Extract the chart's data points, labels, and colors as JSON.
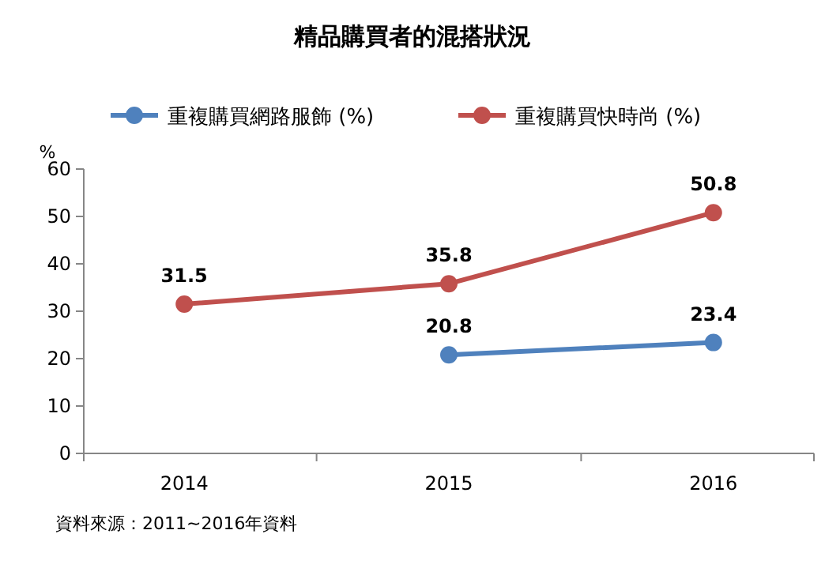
{
  "chart_data": {
    "type": "line",
    "title": "精品購買者的混搭狀況",
    "ylabel": "%",
    "categories": [
      "2014",
      "2015",
      "2016"
    ],
    "series": [
      {
        "name": "重複購買網路服飾 (%)",
        "color": "#4f81bd",
        "values": [
          null,
          20.8,
          23.4
        ]
      },
      {
        "name": "重複購買快時尚 (%)",
        "color": "#c0504d",
        "values": [
          31.5,
          35.8,
          50.8
        ]
      }
    ],
    "ylim": [
      0,
      60
    ],
    "yticks": [
      0,
      10,
      20,
      30,
      40,
      50,
      60
    ],
    "grid": false,
    "legend": "top",
    "marker": "circle",
    "line_style": "solid",
    "data_labels": true,
    "annotations": [
      "資料來源：2011~2016年資料"
    ]
  }
}
